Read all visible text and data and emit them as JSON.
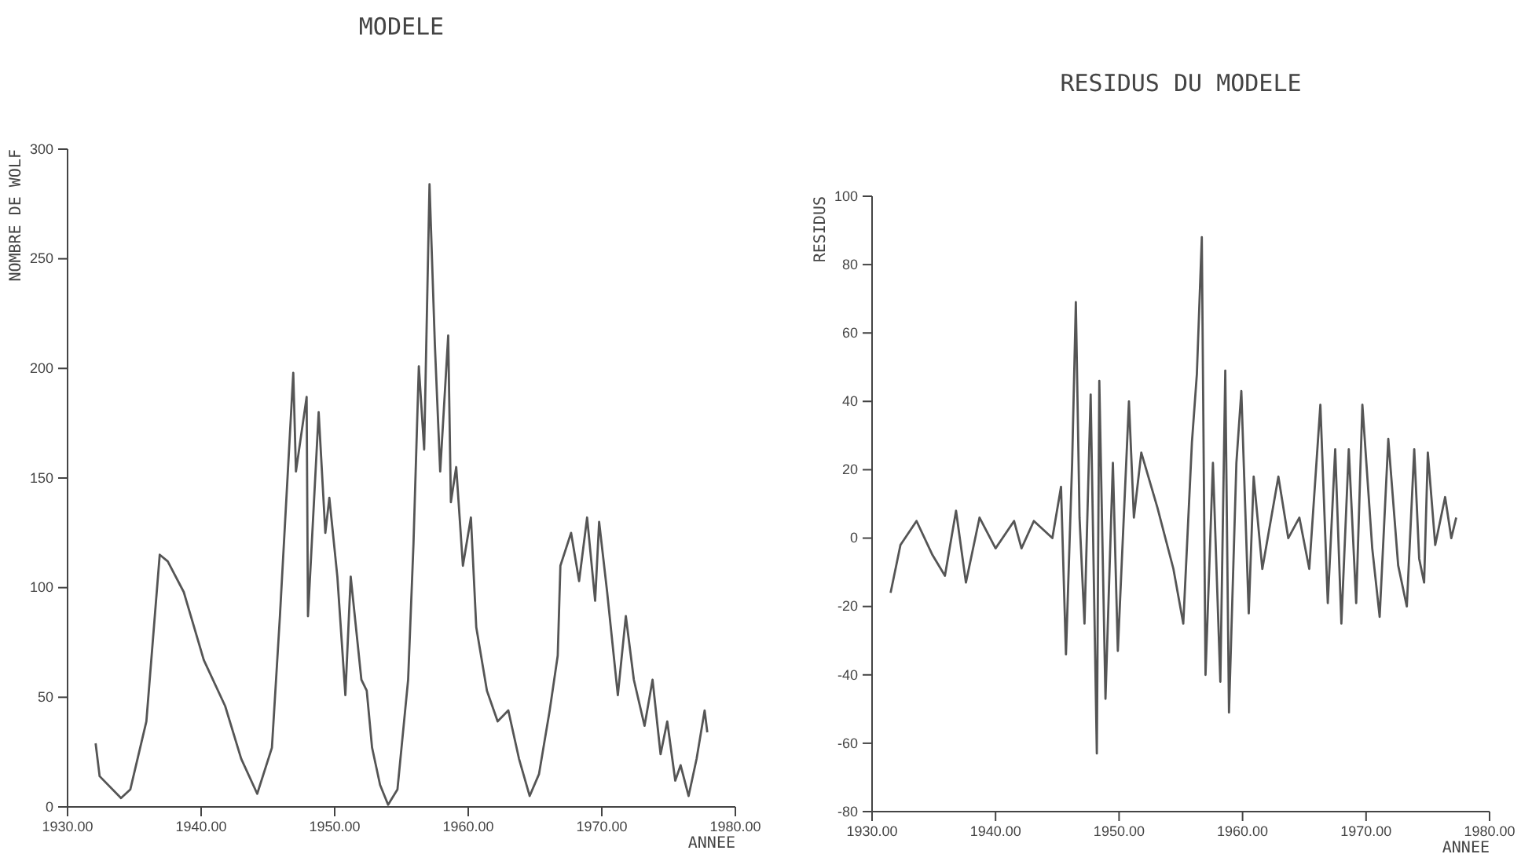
{
  "chart_data": [
    {
      "type": "line",
      "title": "MODELE",
      "xlabel": "ANNEE",
      "ylabel": "NOMBRE DE WOLF",
      "color": "#555555",
      "x": [
        1932.1,
        1932.4,
        1934.0,
        1934.7,
        1935.9,
        1936.9,
        1937.5,
        1938.7,
        1940.2,
        1941.8,
        1943.0,
        1944.2,
        1945.3,
        1945.9,
        1946.9,
        1947.1,
        1947.9,
        1948.0,
        1948.8,
        1949.3,
        1949.6,
        1950.2,
        1950.8,
        1951.2,
        1952.0,
        1952.4,
        1952.8,
        1953.4,
        1954.0,
        1954.7,
        1955.5,
        1955.9,
        1956.3,
        1956.7,
        1957.1,
        1957.5,
        1957.9,
        1958.5,
        1958.7,
        1959.1,
        1959.6,
        1960.2,
        1960.6,
        1961.4,
        1962.2,
        1963.0,
        1963.8,
        1964.6,
        1965.3,
        1966.1,
        1966.7,
        1966.9,
        1967.7,
        1968.3,
        1968.9,
        1969.5,
        1969.8,
        1970.4,
        1971.2,
        1971.8,
        1972.4,
        1973.2,
        1973.8,
        1974.4,
        1974.9,
        1975.5,
        1975.9,
        1976.5,
        1977.1,
        1977.7,
        1977.9
      ],
      "values": [
        29,
        14,
        4,
        8,
        39,
        115,
        112,
        98,
        67,
        46,
        22,
        6,
        27,
        87,
        198,
        153,
        187,
        87,
        180,
        125,
        141,
        105,
        51,
        105,
        58,
        53,
        27,
        10,
        1,
        8,
        58,
        120,
        201,
        163,
        284,
        211,
        153,
        215,
        139,
        155,
        110,
        132,
        82,
        53,
        39,
        44,
        22,
        5,
        15,
        44,
        69,
        110,
        125,
        103,
        132,
        94,
        130,
        98,
        51,
        87,
        58,
        37,
        58,
        24,
        39,
        12,
        19,
        5,
        22,
        44,
        34
      ],
      "xlim": [
        1930,
        1980
      ],
      "xticks": [
        {
          "value": 1930,
          "label": "1930.00"
        },
        {
          "value": 1940,
          "label": "1940.00"
        },
        {
          "value": 1950,
          "label": "1950.00"
        },
        {
          "value": 1960,
          "label": "1960.00"
        },
        {
          "value": 1970,
          "label": "1970.00"
        },
        {
          "value": 1980,
          "label": "1980.00"
        }
      ],
      "ylim": [
        0,
        300
      ],
      "yticks": [
        0,
        50,
        100,
        150,
        200,
        250,
        300
      ]
    },
    {
      "type": "line",
      "title": "RESIDUS DU MODELE",
      "xlabel": "ANNEE",
      "ylabel": "RESIDUS",
      "color": "#555555",
      "x": [
        1931.5,
        1932.3,
        1933.6,
        1934.9,
        1935.9,
        1936.8,
        1937.6,
        1938.7,
        1940.0,
        1941.5,
        1942.1,
        1943.1,
        1944.6,
        1945.3,
        1945.7,
        1946.2,
        1946.5,
        1946.8,
        1947.2,
        1947.7,
        1948.2,
        1948.4,
        1948.9,
        1949.5,
        1949.9,
        1950.8,
        1951.2,
        1951.8,
        1953.1,
        1954.4,
        1955.2,
        1955.9,
        1956.3,
        1956.7,
        1957.0,
        1957.6,
        1958.2,
        1958.6,
        1958.9,
        1959.5,
        1959.9,
        1960.5,
        1960.9,
        1961.6,
        1962.9,
        1963.7,
        1964.6,
        1965.4,
        1966.3,
        1966.9,
        1967.5,
        1968.0,
        1968.6,
        1969.2,
        1969.7,
        1970.5,
        1971.1,
        1971.8,
        1972.6,
        1973.3,
        1973.9,
        1974.3,
        1974.7,
        1975.0,
        1975.6,
        1976.4,
        1976.9,
        1977.3
      ],
      "values": [
        -16,
        -2,
        5,
        -5,
        -11,
        8,
        -13,
        6,
        -3,
        5,
        -3,
        5,
        0,
        15,
        -34,
        22,
        69,
        6,
        -25,
        42,
        -63,
        46,
        -47,
        22,
        -33,
        40,
        6,
        25,
        9,
        -9,
        -25,
        28,
        48,
        88,
        -40,
        22,
        -42,
        49,
        -51,
        22,
        43,
        -22,
        18,
        -9,
        18,
        0,
        6,
        -9,
        39,
        -19,
        26,
        -25,
        26,
        -19,
        39,
        -3,
        -23,
        29,
        -8,
        -20,
        26,
        -6,
        -13,
        25,
        -2,
        12,
        0,
        6
      ],
      "xlim": [
        1930,
        1980
      ],
      "xticks": [
        {
          "value": 1930,
          "label": "1930.00"
        },
        {
          "value": 1940,
          "label": "1940.00"
        },
        {
          "value": 1950,
          "label": "1950.00"
        },
        {
          "value": 1960,
          "label": "1960.00"
        },
        {
          "value": 1970,
          "label": "1970.00"
        },
        {
          "value": 1980,
          "label": "1980.00"
        }
      ],
      "ylim": [
        -80,
        100
      ],
      "yticks": [
        -80,
        -60,
        -40,
        -20,
        0,
        20,
        40,
        60,
        80,
        100
      ]
    }
  ]
}
